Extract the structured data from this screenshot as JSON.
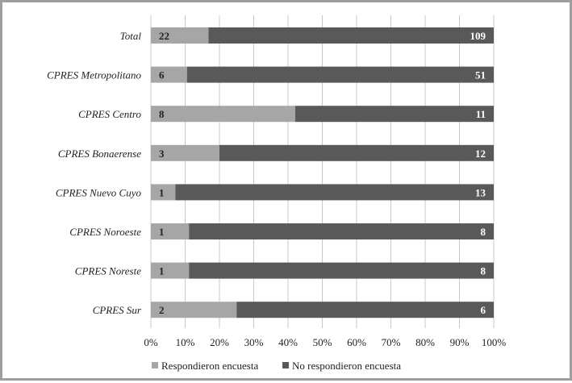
{
  "chart_data": {
    "type": "bar",
    "orientation": "horizontal",
    "stacked": "percent",
    "categories": [
      "Total",
      "CPRES Metropolitano",
      "CPRES Centro",
      "CPRES Bonaerense",
      "CPRES Nuevo Cuyo",
      "CPRES Noroeste",
      "CPRES Noreste",
      "CPRES Sur"
    ],
    "series": [
      {
        "name": "Respondieron encuesta",
        "values": [
          22,
          6,
          8,
          3,
          1,
          1,
          1,
          2
        ],
        "color": "#a6a6a6"
      },
      {
        "name": "No respondieron encuesta",
        "values": [
          109,
          51,
          11,
          12,
          13,
          8,
          8,
          6
        ],
        "color": "#595959"
      }
    ],
    "x_ticks": [
      "0%",
      "10%",
      "20%",
      "30%",
      "40%",
      "50%",
      "60%",
      "70%",
      "80%",
      "90%",
      "100%"
    ],
    "xlim": [
      0,
      100
    ],
    "grid": true,
    "legend_position": "bottom"
  }
}
